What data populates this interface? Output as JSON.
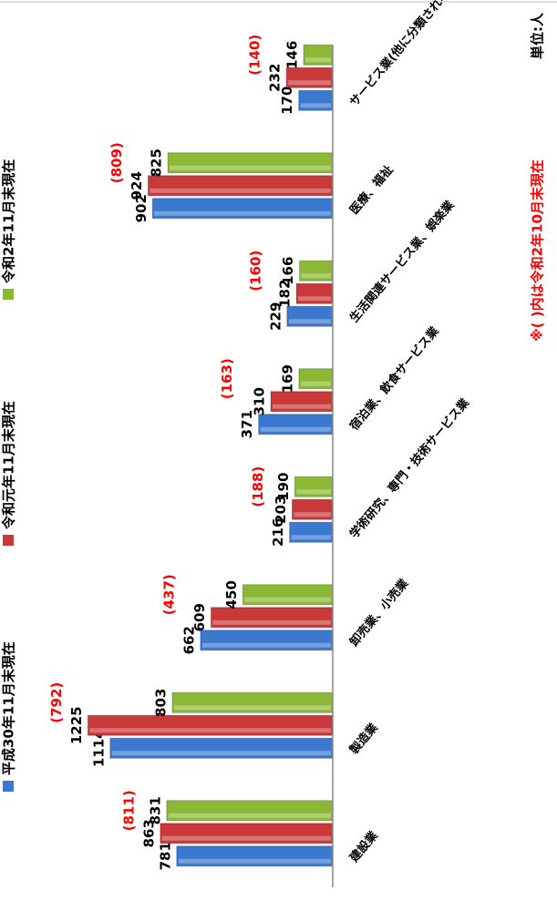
{
  "chart_data": {
    "type": "bar",
    "unit_note": "単位:人",
    "footnote": "※( )内は令和2年10月末現在",
    "categories": [
      "建設業",
      "製造業",
      "卸売業、小売業",
      "学術研究、専門・技術サービス業",
      "宿泊業、飲食サービス業",
      "生活関連サービス業、娯楽業",
      "医療、福祉",
      "サービス業(他に分類されないもの)"
    ],
    "series": [
      {
        "name": "平成30年11月末現在",
        "color": "#3b78cf",
        "values": [
          781,
          1114,
          662,
          216,
          371,
          229,
          902,
          170
        ]
      },
      {
        "name": "令和元年11月末現在",
        "color": "#c9393a",
        "values": [
          863,
          1225,
          609,
          203,
          310,
          182,
          924,
          232
        ]
      },
      {
        "name": "令和2年11月末現在",
        "color": "#8bb935",
        "values": [
          831,
          803,
          450,
          190,
          169,
          166,
          825,
          146
        ]
      }
    ],
    "reference": {
      "color": "#ff0000",
      "values": [
        811,
        792,
        437,
        188,
        163,
        160,
        809,
        140
      ],
      "value_labels": [
        "(811)",
        "(792)",
        "(437)",
        "(188)",
        "(163)",
        "(160)",
        "(809)",
        "(140)"
      ]
    },
    "ylim": [
      0,
      1300
    ]
  }
}
